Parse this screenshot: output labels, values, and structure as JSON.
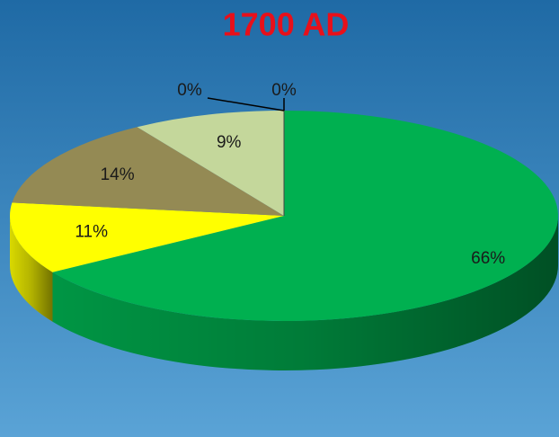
{
  "chart_data": {
    "type": "pie",
    "title": "1700 AD",
    "values": [
      66,
      11,
      14,
      9,
      0,
      0
    ],
    "value_labels": [
      "66%",
      "11%",
      "14%",
      "9%",
      "0%",
      "0%"
    ],
    "colors": [
      "#00b050",
      "#ffff00",
      "#948a54",
      "#c4d79b",
      "#f2f2f2",
      "#d9d9d9"
    ],
    "three_d": true
  }
}
